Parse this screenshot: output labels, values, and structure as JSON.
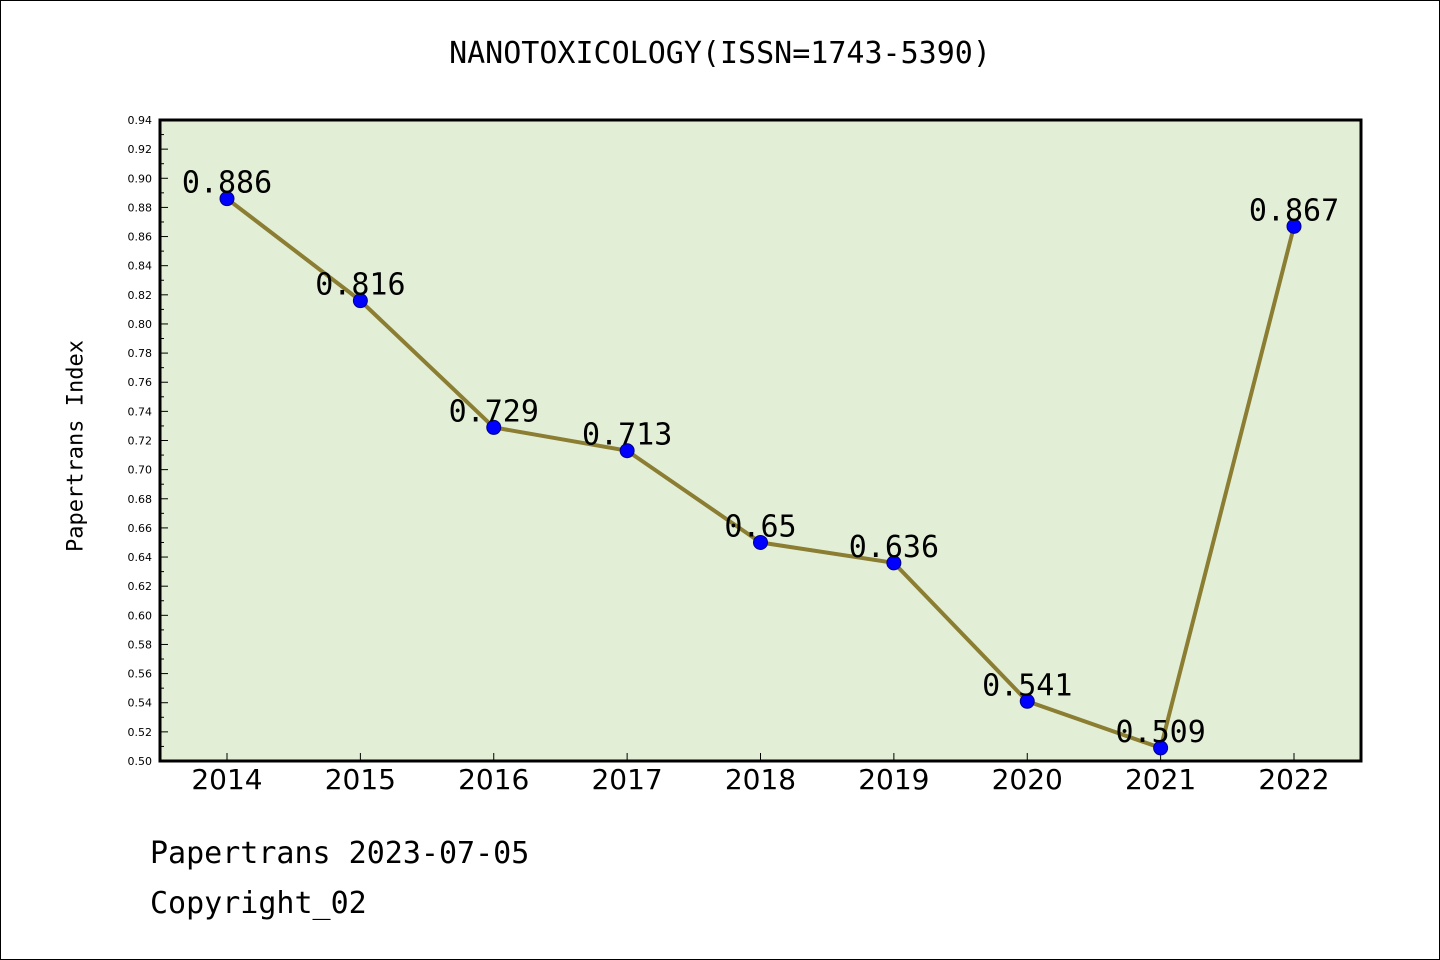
{
  "title": "NANOTOXICOLOGY(ISSN=1743-5390)",
  "footer": {
    "date_line": "Papertrans 2023-07-05",
    "copyright_line": "Copyright_02"
  },
  "colors": {
    "plot_background": "#e2efd6",
    "line": "#8b7d32",
    "marker": "#0000ff",
    "marker_edge": "#000080"
  },
  "chart_data": {
    "type": "line",
    "title": "NANOTOXICOLOGY(ISSN=1743-5390)",
    "xlabel": "",
    "ylabel": "Papertrans Index",
    "categories": [
      "2014",
      "2015",
      "2016",
      "2017",
      "2018",
      "2019",
      "2020",
      "2021",
      "2022"
    ],
    "series": [
      {
        "values": [
          0.886,
          0.816,
          0.729,
          0.713,
          0.65,
          0.636,
          0.541,
          0.509,
          0.867
        ],
        "data_labels": [
          "0.886",
          "0.816",
          "0.729",
          "0.713",
          "0.65",
          "0.636",
          "0.541",
          "0.509",
          "0.867"
        ]
      }
    ],
    "ylim": [
      0.5,
      0.94
    ],
    "yticks": [
      "0.50",
      "0.52",
      "0.54",
      "0.56",
      "0.58",
      "0.60",
      "0.62",
      "0.64",
      "0.66",
      "0.68",
      "0.70",
      "0.72",
      "0.74",
      "0.76",
      "0.78",
      "0.80",
      "0.82",
      "0.84",
      "0.86",
      "0.88",
      "0.90",
      "0.92",
      "0.94"
    ],
    "grid": false,
    "legend": "none"
  }
}
